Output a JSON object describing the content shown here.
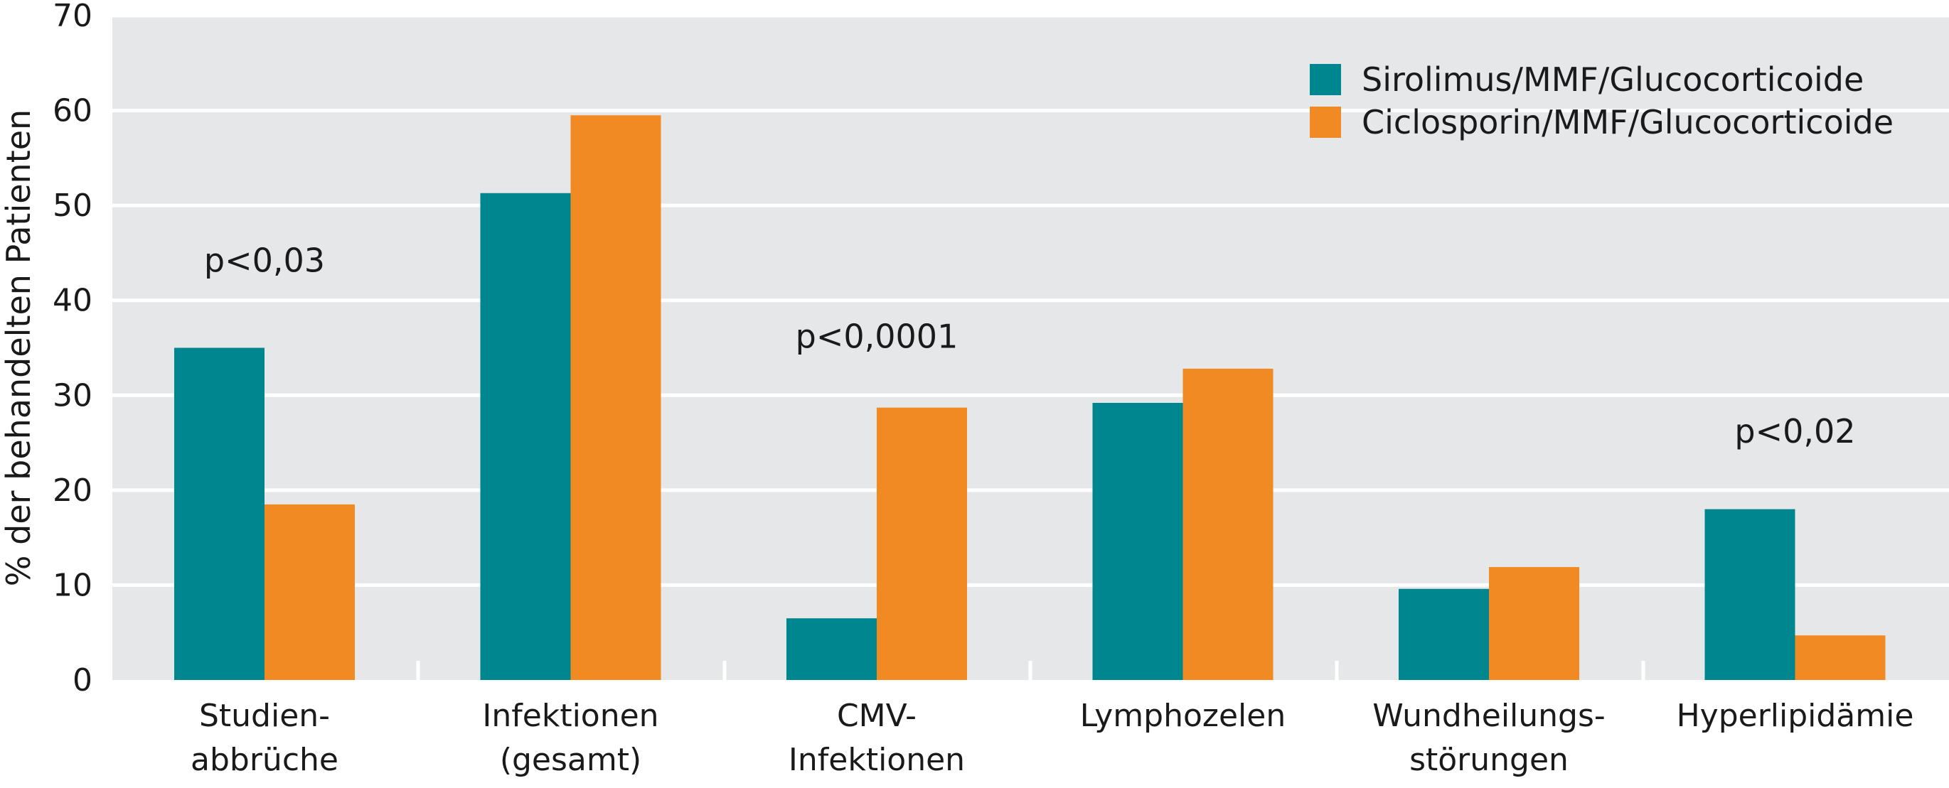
{
  "chart_data": {
    "type": "bar",
    "categories": [
      [
        "Studien-",
        "abbrüche"
      ],
      [
        "Infektionen",
        "(gesamt)"
      ],
      [
        "CMV-",
        "Infektionen"
      ],
      [
        "Lymphozelen"
      ],
      [
        "Wundheilungs-",
        "störungen"
      ],
      [
        "Hyperlipidämie"
      ]
    ],
    "series": [
      {
        "name": "Sirolimus/MMF/Glucocorticoide",
        "color": "#00868f",
        "values": [
          35,
          51.3,
          6.5,
          29.2,
          9.6,
          18
        ]
      },
      {
        "name": "Ciclosporin/MMF/Glucocorticoide",
        "color": "#f28a24",
        "values": [
          18.5,
          59.5,
          28.7,
          32.8,
          11.9,
          4.7
        ]
      }
    ],
    "ylabel": "% der behandelten Patienten",
    "ylim": [
      0,
      70
    ],
    "yticks": [
      0,
      10,
      20,
      30,
      40,
      50,
      60,
      70
    ],
    "annotations": [
      {
        "category_index": 0,
        "text": "p<0,03",
        "y": 43
      },
      {
        "category_index": 2,
        "text": "p<0,0001",
        "y": 35
      },
      {
        "category_index": 5,
        "text": "p<0,02",
        "y": 25
      }
    ],
    "grid": true,
    "legend_position": "top-right",
    "plot_background": "#e6e7e9"
  }
}
